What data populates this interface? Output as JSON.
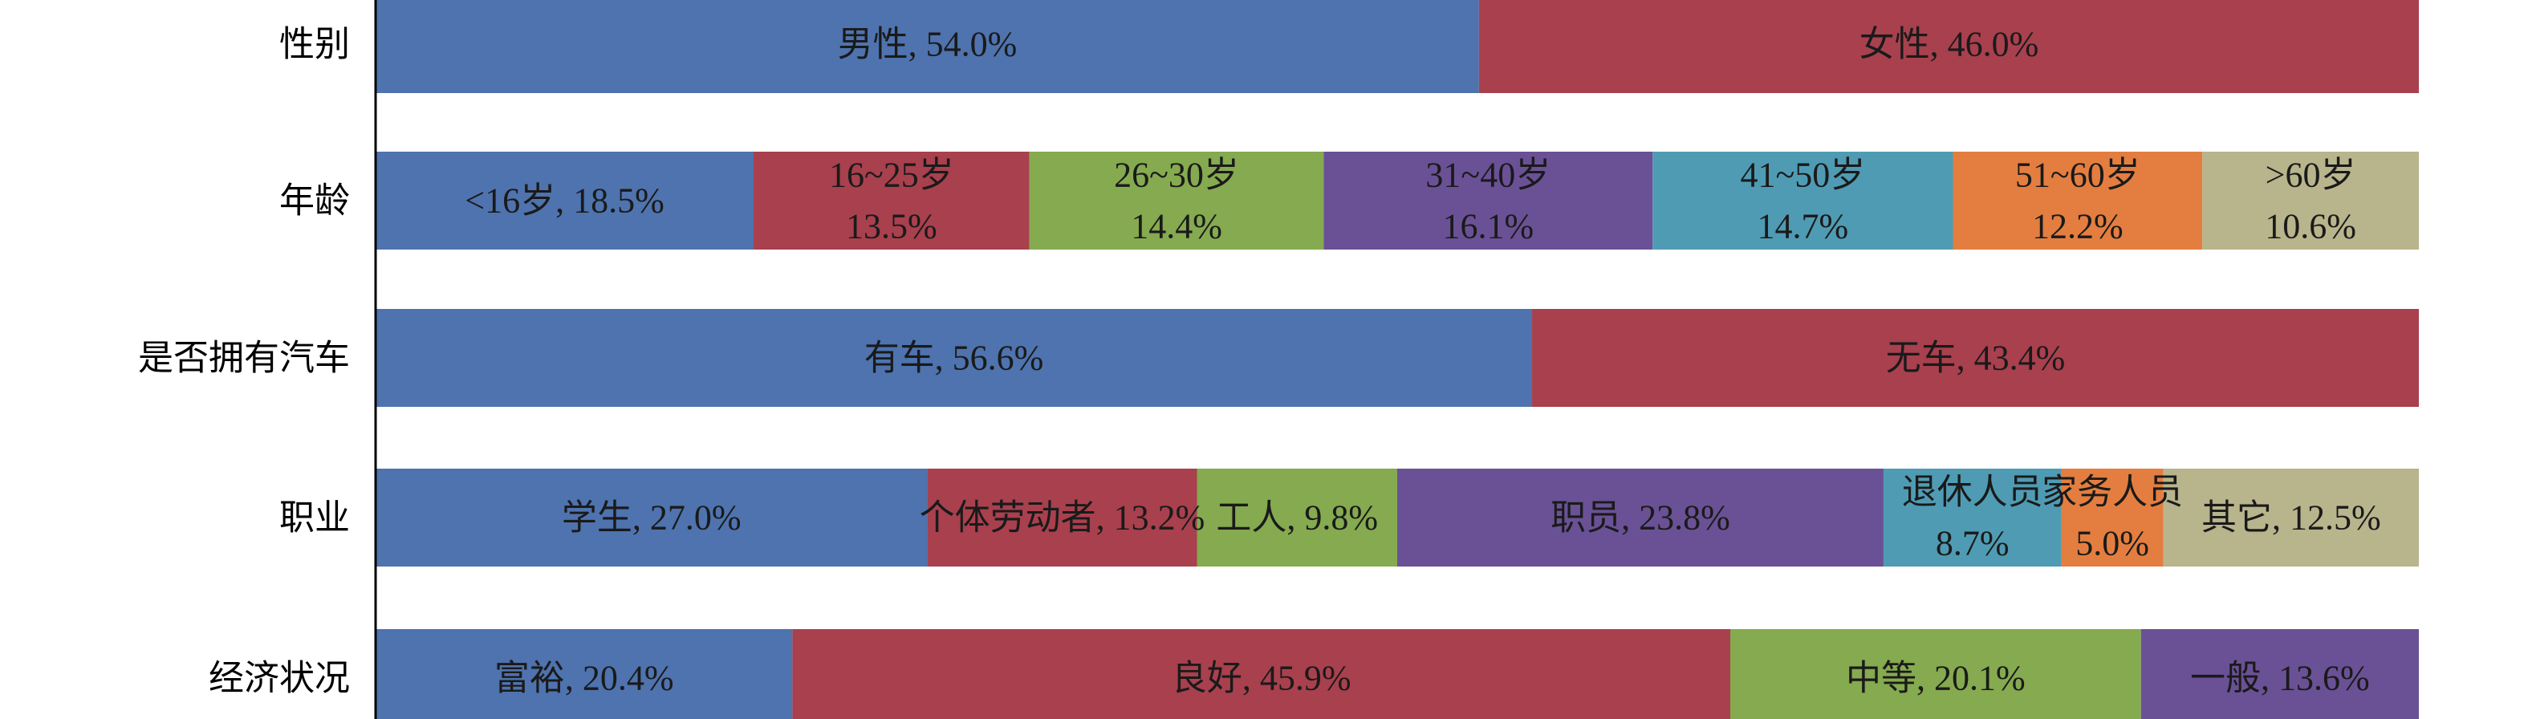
{
  "chart_data": {
    "type": "bar",
    "orientation": "horizontal",
    "stacked": "100%",
    "xlim": [
      0,
      100
    ],
    "grid": false,
    "legend": "none",
    "colors": [
      "#4e73ae",
      "#a8404e",
      "#85aa4f",
      "#6a5195",
      "#4f9bb3",
      "#e37e40",
      "#b8b48c"
    ],
    "rows": [
      {
        "category": "性别",
        "segments": [
          {
            "name": "男性",
            "value": 54.0,
            "label": [
              "男性, 54.0%"
            ]
          },
          {
            "name": "女性",
            "value": 46.0,
            "label": [
              "女性, 46.0%"
            ]
          }
        ]
      },
      {
        "category": "年龄",
        "segments": [
          {
            "name": "<16岁",
            "value": 18.5,
            "label": [
              "<16岁, 18.5%"
            ]
          },
          {
            "name": "16~25岁",
            "value": 13.5,
            "label": [
              "16~25岁",
              "13.5%"
            ]
          },
          {
            "name": "26~30岁",
            "value": 14.4,
            "label": [
              "26~30岁",
              "14.4%"
            ]
          },
          {
            "name": "31~40岁",
            "value": 16.1,
            "label": [
              "31~40岁",
              "16.1%"
            ]
          },
          {
            "name": "41~50岁",
            "value": 14.7,
            "label": [
              "41~50岁",
              "14.7%"
            ]
          },
          {
            "name": "51~60岁",
            "value": 12.2,
            "label": [
              "51~60岁",
              "12.2%"
            ]
          },
          {
            "name": ">60岁",
            "value": 10.6,
            "label": [
              ">60岁",
              "10.6%"
            ]
          }
        ]
      },
      {
        "category": "是否拥有汽车",
        "segments": [
          {
            "name": "有车",
            "value": 56.6,
            "label": [
              "有车, 56.6%"
            ]
          },
          {
            "name": "无车",
            "value": 43.4,
            "label": [
              "无车, 43.4%"
            ]
          }
        ]
      },
      {
        "category": "职业",
        "segments": [
          {
            "name": "学生",
            "value": 27.0,
            "label": [
              "学生, 27.0%"
            ]
          },
          {
            "name": "个体劳动者",
            "value": 13.2,
            "label": [
              "个体劳动者, 13.2%"
            ]
          },
          {
            "name": "工人",
            "value": 9.8,
            "label": [
              "工人, 9.8%"
            ]
          },
          {
            "name": "职员",
            "value": 23.8,
            "label": [
              "职员, 23.8%"
            ]
          },
          {
            "name": "退休人员",
            "value": 8.7,
            "label": [
              "退休人员",
              "8.7%"
            ]
          },
          {
            "name": "家务人员",
            "value": 5.0,
            "label": [
              "家务人员",
              "5.0%"
            ]
          },
          {
            "name": "其它",
            "value": 12.5,
            "label": [
              "其它, 12.5%"
            ]
          }
        ]
      },
      {
        "category": "经济状况",
        "segments": [
          {
            "name": "富裕",
            "value": 20.4,
            "label": [
              "富裕, 20.4%"
            ]
          },
          {
            "name": "良好",
            "value": 45.9,
            "label": [
              "良好, 45.9%"
            ]
          },
          {
            "name": "中等",
            "value": 20.1,
            "label": [
              "中等, 20.1%"
            ]
          },
          {
            "name": "一般",
            "value": 13.6,
            "label": [
              "一般, 13.6%"
            ]
          }
        ]
      }
    ]
  }
}
